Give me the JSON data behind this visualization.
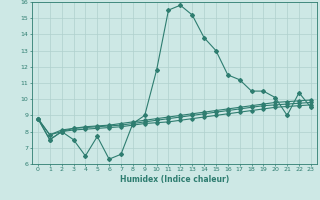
{
  "xlabel": "Humidex (Indice chaleur)",
  "x": [
    0,
    1,
    2,
    3,
    4,
    5,
    6,
    7,
    8,
    9,
    10,
    11,
    12,
    13,
    14,
    15,
    16,
    17,
    18,
    19,
    20,
    21,
    22,
    23
  ],
  "line1": [
    8.8,
    7.5,
    8.0,
    7.5,
    6.5,
    7.7,
    6.3,
    6.6,
    8.5,
    9.0,
    11.8,
    15.5,
    15.8,
    15.2,
    13.8,
    13.0,
    11.5,
    11.2,
    10.5,
    10.5,
    10.1,
    9.0,
    10.4,
    9.5
  ],
  "line2": [
    8.8,
    7.8,
    8.1,
    8.2,
    8.3,
    8.35,
    8.4,
    8.5,
    8.6,
    8.7,
    8.8,
    8.9,
    9.0,
    9.1,
    9.2,
    9.3,
    9.4,
    9.5,
    9.6,
    9.7,
    9.8,
    9.85,
    9.9,
    9.95
  ],
  "line3": [
    8.8,
    7.8,
    8.0,
    8.2,
    8.25,
    8.3,
    8.35,
    8.4,
    8.5,
    8.6,
    8.7,
    8.8,
    8.9,
    9.0,
    9.1,
    9.2,
    9.3,
    9.4,
    9.5,
    9.6,
    9.65,
    9.7,
    9.75,
    9.8
  ],
  "line4": [
    8.8,
    7.5,
    8.0,
    8.1,
    8.15,
    8.2,
    8.25,
    8.3,
    8.4,
    8.5,
    8.55,
    8.6,
    8.7,
    8.8,
    8.9,
    9.0,
    9.1,
    9.2,
    9.3,
    9.4,
    9.5,
    9.55,
    9.6,
    9.65
  ],
  "line_color": "#2e7d70",
  "bg_color": "#cde8e5",
  "plot_bg": "#cde8e5",
  "grid_color": "#b0d0cd",
  "ylim": [
    6,
    16
  ],
  "xlim": [
    -0.5,
    23.5
  ],
  "yticks": [
    6,
    7,
    8,
    9,
    10,
    11,
    12,
    13,
    14,
    15,
    16
  ],
  "xticks": [
    0,
    1,
    2,
    3,
    4,
    5,
    6,
    7,
    8,
    9,
    10,
    11,
    12,
    13,
    14,
    15,
    16,
    17,
    18,
    19,
    20,
    21,
    22,
    23
  ]
}
